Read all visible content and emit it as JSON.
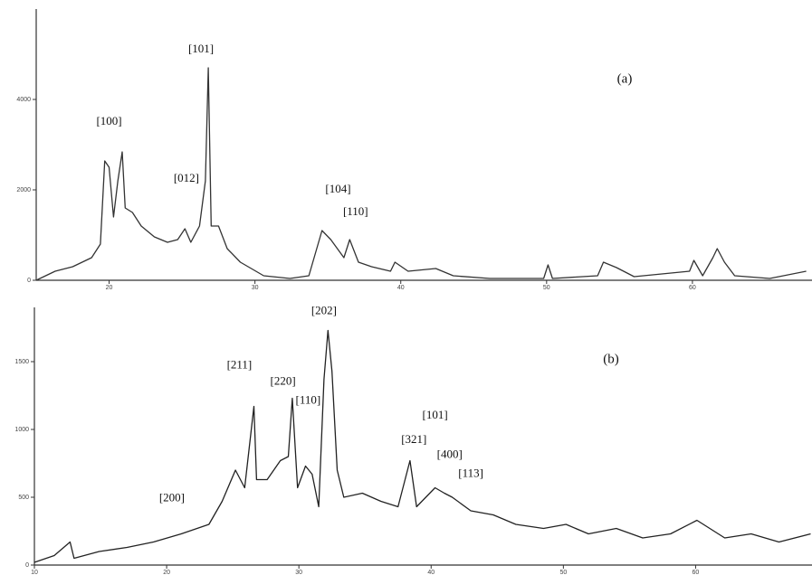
{
  "chart_data": [
    {
      "type": "line",
      "label": "(a)",
      "color": "#333333",
      "xlim": [
        15,
        68.2
      ],
      "xticks": [
        20,
        30,
        40,
        50,
        60
      ],
      "ylim": [
        0,
        6000
      ],
      "yticks": [
        0,
        2000,
        4000
      ],
      "x": [
        15.0,
        16.3,
        17.5,
        18.8,
        19.4,
        19.7,
        20.0,
        20.3,
        20.6,
        20.9,
        21.1,
        21.6,
        22.2,
        23.1,
        24.0,
        24.7,
        25.2,
        25.6,
        26.2,
        26.6,
        26.8,
        27.0,
        27.5,
        28.1,
        29.0,
        30.6,
        32.4,
        33.7,
        34.6,
        35.2,
        36.1,
        36.5,
        37.1,
        38.0,
        39.3,
        39.6,
        40.5,
        42.4,
        43.6,
        46.1,
        49.8,
        50.1,
        50.4,
        53.5,
        53.9,
        54.8,
        56.0,
        59.8,
        60.1,
        60.7,
        61.4,
        61.7,
        62.2,
        62.9,
        65.3,
        67.8
      ],
      "values": [
        0,
        200,
        300,
        500,
        800,
        2640,
        2500,
        1400,
        2200,
        2840,
        1600,
        1500,
        1200,
        960,
        840,
        900,
        1140,
        840,
        1200,
        2200,
        4700,
        1200,
        1200,
        700,
        400,
        100,
        40,
        100,
        1100,
        900,
        500,
        900,
        400,
        300,
        200,
        400,
        200,
        260,
        100,
        40,
        40,
        340,
        40,
        100,
        400,
        280,
        80,
        200,
        440,
        100,
        500,
        700,
        400,
        100,
        40,
        200
      ],
      "annotations": [
        {
          "text": "[100]",
          "x": 20.0,
          "y": 3500
        },
        {
          "text": "[101]",
          "x": 26.3,
          "y": 5100
        },
        {
          "text": "[012]",
          "x": 25.3,
          "y": 2240
        },
        {
          "text": "[104]",
          "x": 35.7,
          "y": 2000
        },
        {
          "text": "[110]",
          "x": 36.9,
          "y": 1500
        }
      ]
    },
    {
      "type": "line",
      "label": "(b)",
      "color": "#222222",
      "xlim": [
        10,
        68.8
      ],
      "xticks": [
        10,
        20,
        30,
        40,
        50,
        60
      ],
      "ylim": [
        0,
        1900
      ],
      "yticks": [
        0,
        500,
        1000,
        1500
      ],
      "x": [
        10.0,
        11.5,
        12.7,
        13.0,
        14.9,
        17.0,
        19.0,
        21.1,
        23.2,
        24.2,
        25.2,
        25.9,
        26.6,
        26.8,
        27.6,
        28.6,
        29.2,
        29.5,
        29.9,
        30.5,
        31.0,
        31.5,
        31.9,
        32.2,
        32.5,
        32.9,
        33.4,
        34.8,
        36.2,
        37.5,
        38.4,
        38.9,
        40.3,
        41.0,
        41.6,
        43.0,
        44.7,
        46.4,
        48.5,
        50.2,
        51.9,
        54.0,
        56.0,
        58.1,
        60.1,
        62.2,
        64.2,
        66.3,
        68.7
      ],
      "values": [
        20,
        70,
        170,
        50,
        100,
        130,
        170,
        230,
        300,
        470,
        700,
        570,
        1170,
        630,
        630,
        770,
        800,
        1230,
        570,
        730,
        670,
        430,
        1370,
        1730,
        1430,
        700,
        500,
        530,
        470,
        430,
        770,
        430,
        570,
        530,
        500,
        400,
        370,
        300,
        270,
        300,
        230,
        270,
        200,
        230,
        330,
        200,
        230,
        170,
        230
      ],
      "annotations": [
        {
          "text": "[202]",
          "x": 31.9,
          "y": 1870
        },
        {
          "text": "[211]",
          "x": 25.5,
          "y": 1470
        },
        {
          "text": "[220]",
          "x": 28.8,
          "y": 1350
        },
        {
          "text": "[110]",
          "x": 30.7,
          "y": 1210
        },
        {
          "text": "[101]",
          "x": 40.3,
          "y": 1100
        },
        {
          "text": "[321]",
          "x": 38.7,
          "y": 920
        },
        {
          "text": "[400]",
          "x": 41.4,
          "y": 810
        },
        {
          "text": "[113]",
          "x": 43.0,
          "y": 670
        },
        {
          "text": "[200]",
          "x": 20.4,
          "y": 490
        }
      ]
    }
  ]
}
